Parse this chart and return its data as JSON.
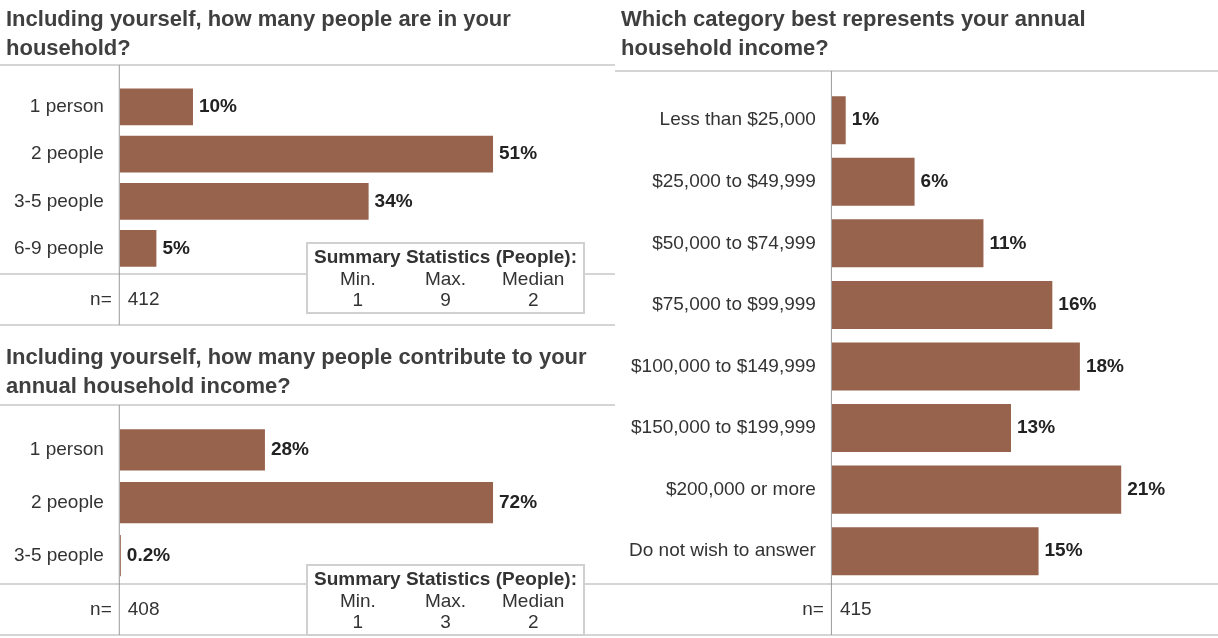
{
  "chart_data": [
    {
      "type": "bar",
      "orientation": "horizontal",
      "title": "Including yourself, how many people are in your household?",
      "categories": [
        "1 person",
        "2 people",
        "3-5 people",
        "6-9 people"
      ],
      "values": [
        10,
        51,
        34,
        5
      ],
      "value_labels": [
        "10%",
        "51%",
        "34%",
        "5%"
      ],
      "color": "#98634d",
      "legend": false,
      "grid": false,
      "annotations": [
        "n=",
        "412",
        "Summary Statistics (People):",
        "Min.",
        "Max.",
        "Median",
        "1",
        "9",
        "2"
      ]
    },
    {
      "type": "bar",
      "orientation": "horizontal",
      "title": "Including yourself, how many people contribute to your annual household income?",
      "categories": [
        "1 person",
        "2 people",
        "3-5 people"
      ],
      "values": [
        28,
        72,
        0.2
      ],
      "value_labels": [
        "28%",
        "72%",
        "0.2%"
      ],
      "color": "#98634d",
      "legend": false,
      "grid": false,
      "annotations": [
        "n=",
        "408",
        "Summary Statistics (People):",
        "Min.",
        "Max.",
        "Median",
        "1",
        "3",
        "2"
      ]
    },
    {
      "type": "bar",
      "orientation": "horizontal",
      "title": "Which category best represents your annual household income?",
      "categories": [
        "Less than $25,000",
        "$25,000 to $49,999",
        "$50,000 to $74,999",
        "$75,000 to $99,999",
        "$100,000 to $149,999",
        "$150,000 to $199,999",
        "$200,000 or more",
        "Do not wish to answer"
      ],
      "values": [
        1,
        6,
        11,
        16,
        18,
        13,
        21,
        15
      ],
      "value_labels": [
        "1%",
        "6%",
        "11%",
        "16%",
        "18%",
        "13%",
        "21%",
        "15%"
      ],
      "color": "#98634d",
      "legend": false,
      "grid": false,
      "annotations": [
        "n=",
        "415"
      ]
    }
  ]
}
